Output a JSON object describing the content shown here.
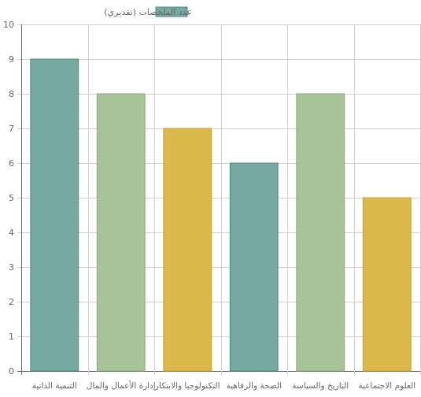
{
  "chart_data": {
    "type": "bar",
    "categories": [
      "التنمية الذاتية",
      "إدارة الأعمال والمال",
      "التكنولوجيا والابتكار",
      "الصحة والرفاهية",
      "التاريخ والسياسة",
      "العلوم الاجتماعية"
    ],
    "series": [
      {
        "name": "عدد الملخصات (تقديري)",
        "values": [
          9,
          8,
          7,
          6,
          8,
          5
        ]
      }
    ],
    "bar_colors": [
      "#75a9a1",
      "#a6c497",
      "#dbb84a",
      "#75a9a1",
      "#a6c497",
      "#dbb84a"
    ],
    "bar_borders": [
      "#4f8a82",
      "#8aab7b",
      "#c9a030",
      "#4f8a82",
      "#8aab7b",
      "#c9a030"
    ],
    "legend_color": "#75a9a1",
    "legend_position": "top",
    "yticks": [
      0,
      1,
      2,
      3,
      4,
      5,
      6,
      7,
      8,
      9,
      10
    ],
    "ylim": [
      0,
      10
    ],
    "grid": true
  }
}
